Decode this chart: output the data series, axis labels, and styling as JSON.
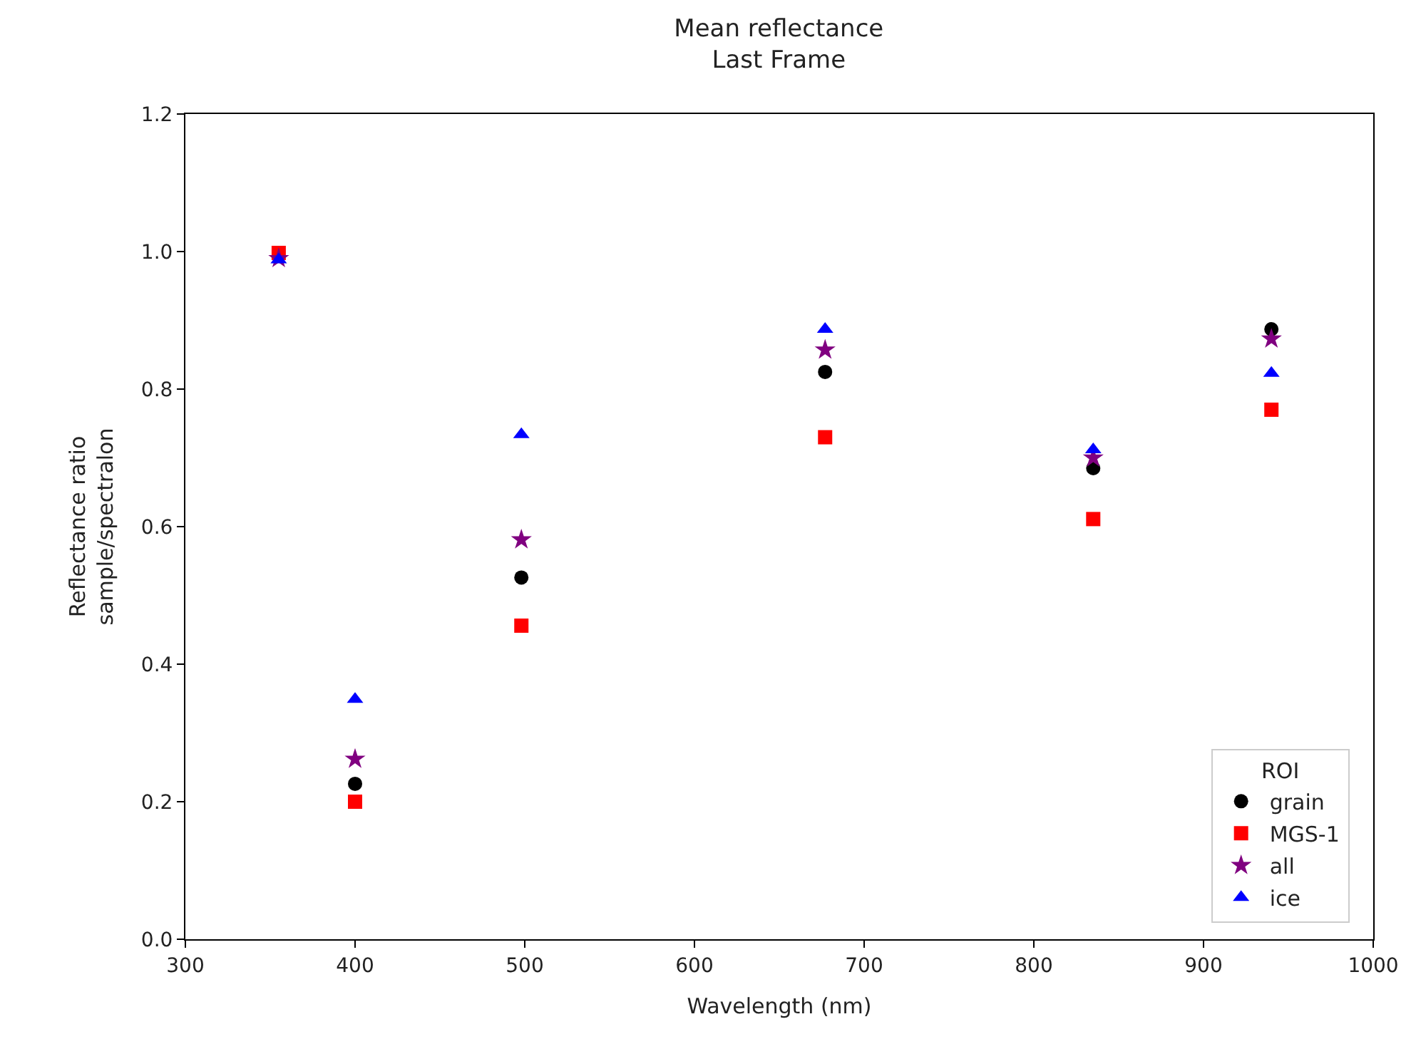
{
  "chart_data": {
    "type": "scatter",
    "title": "Mean reflectance\nLast Frame",
    "xlabel": "Wavelength (nm)",
    "ylabel": "Reflectance ratio\nsample/spectralon",
    "legend_title": "ROI",
    "legend": "bottom right",
    "x": [
      355,
      400,
      498,
      677,
      835,
      940
    ],
    "xlim": [
      300,
      1000
    ],
    "xticks": [
      300,
      400,
      500,
      600,
      700,
      800,
      900,
      1000
    ],
    "ylim": [
      0,
      1.2
    ],
    "yticks": [
      {
        "value": 0,
        "label": "0.0"
      },
      {
        "value": 0.2,
        "label": "0.2"
      },
      {
        "value": 0.4,
        "label": "0.4"
      },
      {
        "value": 0.6,
        "label": "0.6"
      },
      {
        "value": 0.8,
        "label": "0.8"
      },
      {
        "value": 1,
        "label": "1.0"
      },
      {
        "value": 1.2,
        "label": "1.2"
      }
    ],
    "series": [
      {
        "name": "grain",
        "color": "#000000",
        "marker": "circle",
        "values": [
          null,
          0.226,
          0.526,
          0.825,
          0.685,
          0.887
        ]
      },
      {
        "name": "MGS-1",
        "color": "#ff0000",
        "marker": "square",
        "values": [
          0.998,
          0.2,
          0.456,
          0.73,
          0.611,
          0.77
        ]
      },
      {
        "name": "all",
        "color": "#800080",
        "marker": "star",
        "values": [
          0.99,
          0.262,
          0.581,
          0.857,
          0.7,
          0.873
        ]
      },
      {
        "name": "ice",
        "color": "#0000ff",
        "marker": "triangle",
        "values": [
          0.988,
          0.349,
          0.734,
          0.887,
          0.712,
          0.823
        ]
      }
    ]
  }
}
